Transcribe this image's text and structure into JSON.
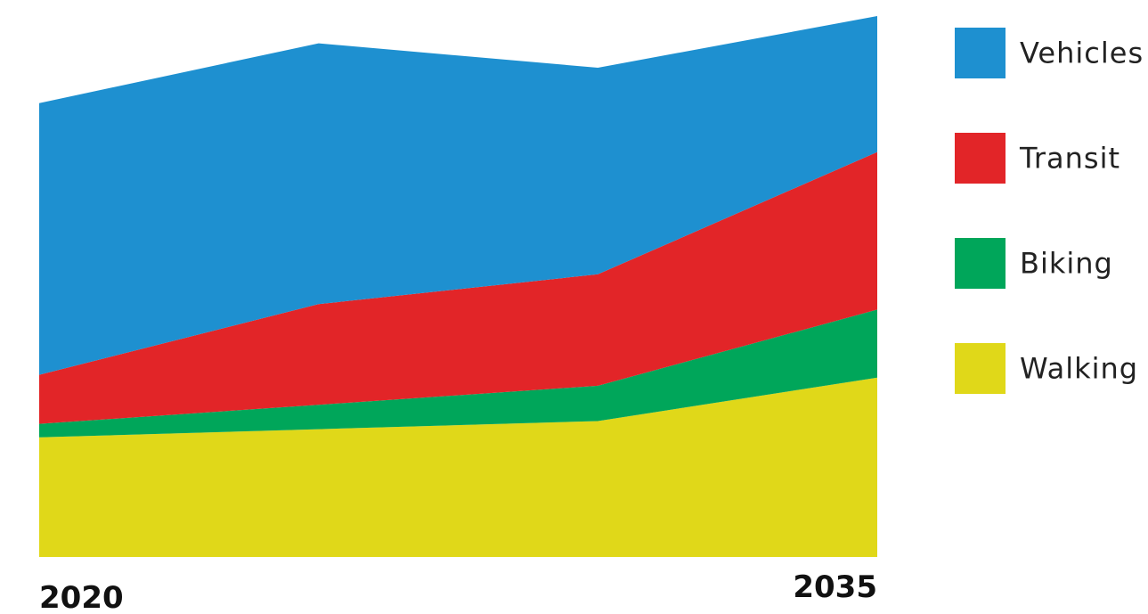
{
  "chart_data": {
    "type": "area",
    "stacked": true,
    "x": [
      2020,
      2025,
      2030,
      2035
    ],
    "x_tick_labels": [
      "2020",
      "2035"
    ],
    "ylim": [
      0,
      100
    ],
    "grid": false,
    "legend_position": "right",
    "series": [
      {
        "name": "Walking",
        "color": "#e0d819",
        "values": [
          22,
          23.5,
          25,
          33
        ]
      },
      {
        "name": "Biking",
        "color": "#00a65a",
        "values": [
          2.5,
          4.5,
          6.5,
          12.5
        ]
      },
      {
        "name": "Transit",
        "color": "#e22528",
        "values": [
          9,
          18.5,
          20.5,
          29
        ]
      },
      {
        "name": "Vehicles",
        "color": "#1e90d0",
        "values": [
          50,
          48,
          38,
          25
        ]
      }
    ],
    "legend_order": [
      "Vehicles",
      "Transit",
      "Biking",
      "Walking"
    ]
  }
}
